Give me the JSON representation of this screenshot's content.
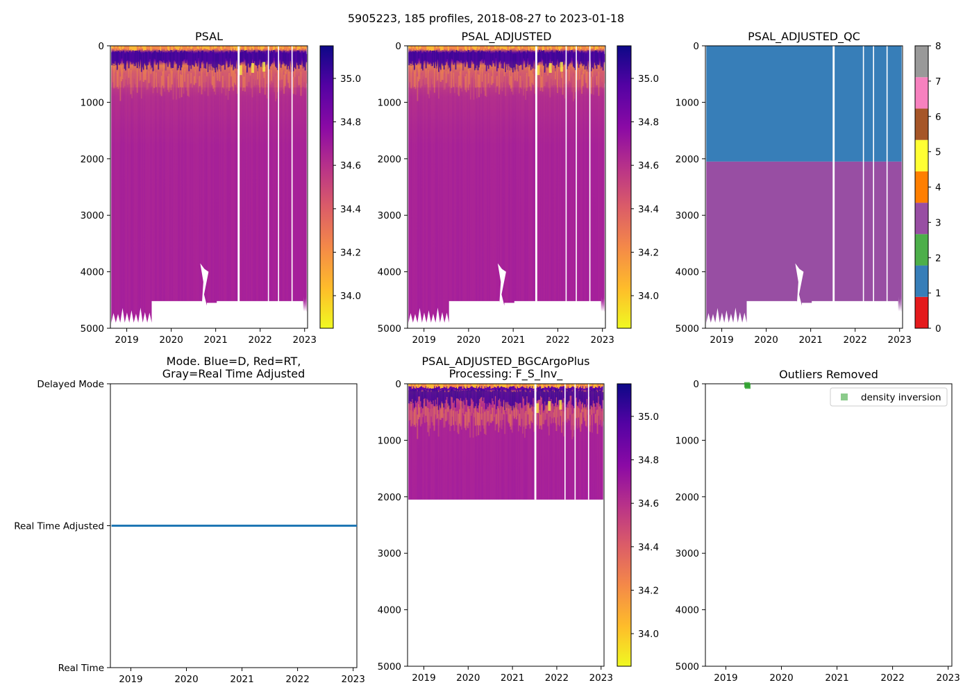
{
  "suptitle": "5905223, 185 profiles, 2018-08-27 to 2023-01-18",
  "colors": {
    "plasma": [
      "#0d0887",
      "#5302a3",
      "#8b0aa5",
      "#b83289",
      "#db5c68",
      "#f48849",
      "#febd2a",
      "#f0f921"
    ],
    "qc": [
      "#e41a1c",
      "#377eb8",
      "#4daf4a",
      "#984ea3",
      "#ff7f00",
      "#ffff33",
      "#a65628",
      "#f781bf",
      "#999999"
    ],
    "field_body": "#a8219b",
    "field_mid": "#8c10a8",
    "field_top": "#4b069e",
    "field_surface": "#f7a83a",
    "mode_line": "#1f77b4",
    "outlier": "#2ca02c"
  },
  "chart_data": [
    {
      "id": "psal",
      "type": "heatmap",
      "title": "PSAL",
      "x_ticks": [
        "2019",
        "2020",
        "2021",
        "2022",
        "2023"
      ],
      "y_ticks": [
        "0",
        "1000",
        "2000",
        "3000",
        "4000",
        "5000"
      ],
      "ylim": [
        5000,
        0
      ],
      "colorbar": {
        "cmap": "plasma",
        "range": [
          33.85,
          35.15
        ],
        "ticks": [
          "34.0",
          "34.2",
          "34.4",
          "34.6",
          "34.8",
          "35.0"
        ]
      }
    },
    {
      "id": "psal_adj",
      "type": "heatmap",
      "title": "PSAL_ADJUSTED",
      "x_ticks": [
        "2019",
        "2020",
        "2021",
        "2022",
        "2023"
      ],
      "y_ticks": [
        "0",
        "1000",
        "2000",
        "3000",
        "4000",
        "5000"
      ],
      "ylim": [
        5000,
        0
      ],
      "colorbar": {
        "cmap": "plasma",
        "range": [
          33.85,
          35.15
        ],
        "ticks": [
          "34.0",
          "34.2",
          "34.4",
          "34.6",
          "34.8",
          "35.0"
        ]
      }
    },
    {
      "id": "psal_qc",
      "type": "heatmap",
      "title": "PSAL_ADJUSTED_QC",
      "x_ticks": [
        "2019",
        "2020",
        "2021",
        "2022",
        "2023"
      ],
      "y_ticks": [
        "0",
        "1000",
        "2000",
        "3000",
        "4000",
        "5000"
      ],
      "ylim": [
        5000,
        0
      ],
      "qc_bands": [
        {
          "from_depth": 0,
          "to_depth": 2050,
          "flag": 1
        },
        {
          "from_depth": 2050,
          "to_depth": 5000,
          "flag": 3
        }
      ],
      "colorbar": {
        "cmap": "qc",
        "ticks": [
          "0",
          "1",
          "2",
          "3",
          "4",
          "5",
          "6",
          "7",
          "8"
        ]
      }
    },
    {
      "id": "mode",
      "type": "line",
      "title_lines": [
        "Mode. Blue=D, Red=RT,",
        "Gray=Real Time Adjusted"
      ],
      "x_ticks": [
        "2019",
        "2020",
        "2021",
        "2022",
        "2023"
      ],
      "y_categories": [
        "Real Time",
        "Real Time Adjusted",
        "Delayed Mode"
      ],
      "series": [
        {
          "name": "mode",
          "value": "Real Time Adjusted",
          "x_start": "2018-08-27",
          "x_end": "2023-01-18"
        }
      ]
    },
    {
      "id": "bgc",
      "type": "heatmap",
      "title_lines": [
        "PSAL_ADJUSTED_BGCArgoPlus",
        "Processing: F_S_Inv_"
      ],
      "x_ticks": [
        "2019",
        "2020",
        "2021",
        "2022",
        "2023"
      ],
      "y_ticks": [
        "0",
        "1000",
        "2000",
        "3000",
        "4000",
        "5000"
      ],
      "ylim": [
        5000,
        0
      ],
      "data_max_depth": 2050,
      "colorbar": {
        "cmap": "plasma",
        "range": [
          33.85,
          35.15
        ],
        "ticks": [
          "34.0",
          "34.2",
          "34.4",
          "34.6",
          "34.8",
          "35.0"
        ]
      }
    },
    {
      "id": "outliers",
      "type": "scatter",
      "title": "Outliers Removed",
      "x_ticks": [
        "2019",
        "2020",
        "2021",
        "2022",
        "2023"
      ],
      "y_ticks": [
        "0",
        "1000",
        "2000",
        "3000",
        "4000",
        "5000"
      ],
      "ylim": [
        5000,
        0
      ],
      "legend": [
        "density inversion"
      ],
      "legend_loc": "top-right",
      "points": [
        {
          "date": "2019-05-20",
          "depth": 20
        },
        {
          "date": "2019-05-25",
          "depth": 40
        }
      ]
    }
  ],
  "time_axis": {
    "start": "2018-08-27",
    "end": "2023-01-18",
    "n_profiles": 185
  },
  "bottom_profile": {
    "segments": [
      {
        "from": "2018-08-27",
        "to": "2019-07-25",
        "depth": 4900,
        "ragged": true
      },
      {
        "from": "2019-07-25",
        "to": "2020-09-10",
        "depth": 4520
      },
      {
        "from": "2020-09-10",
        "to": "2020-10-20",
        "depth": 3850,
        "peak": true
      },
      {
        "from": "2020-10-20",
        "to": "2021-01-10",
        "depth": 4550
      },
      {
        "from": "2021-01-10",
        "to": "2022-12-20",
        "depth": 4520
      },
      {
        "from": "2022-12-20",
        "to": "2023-01-18",
        "depth": 4700,
        "ragged": true
      }
    ]
  },
  "gap_dates": [
    "2021-07-05",
    "2021-07-12",
    "2022-03-10",
    "2022-06-01",
    "2022-09-20"
  ],
  "fresh_patches": [
    {
      "date": "2021-07-25",
      "depth": 420
    },
    {
      "date": "2021-11-01",
      "depth": 380
    },
    {
      "date": "2022-02-01",
      "depth": 360
    }
  ]
}
